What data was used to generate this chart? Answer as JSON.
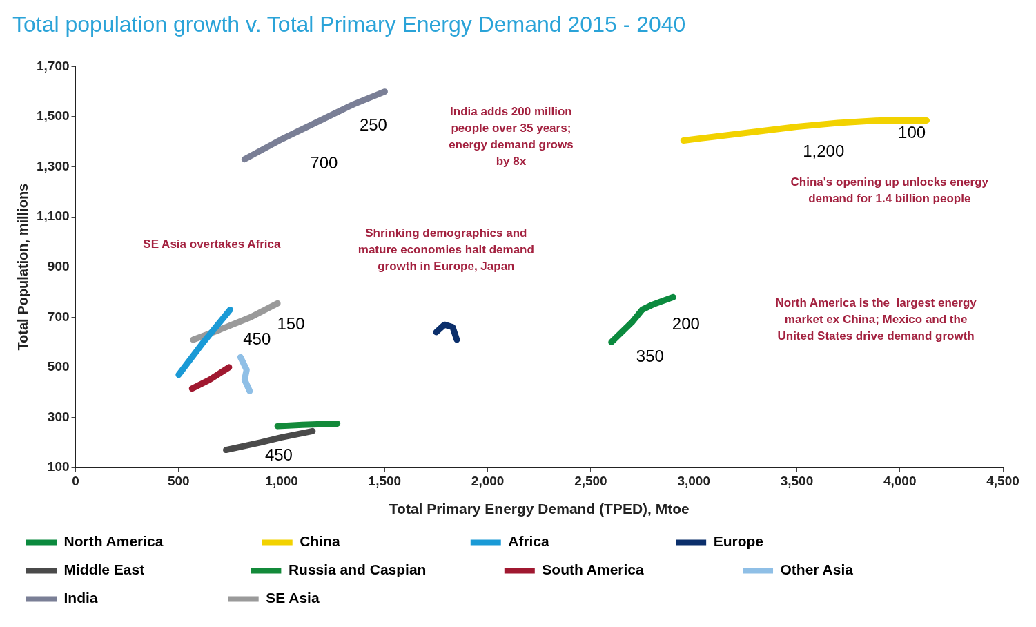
{
  "chart_data": {
    "type": "line",
    "title": "Total population growth v. Total Primary Energy Demand 2015 - 2040",
    "xlabel": "Total Primary Energy Demand (TPED), Mtoe",
    "ylabel": "Total Population, millions",
    "xlim": [
      0,
      4500
    ],
    "xticks": [
      0,
      500,
      {
        "value": 1000,
        "label": "1,000"
      },
      {
        "value": 1500,
        "label": "1,500"
      },
      {
        "value": 2000,
        "label": "2,000"
      },
      {
        "value": 2500,
        "label": "2,500"
      },
      {
        "value": 3000,
        "label": "3,000"
      },
      {
        "value": 3500,
        "label": "3,500"
      },
      {
        "value": 4000,
        "label": "4,000"
      },
      {
        "value": 4500,
        "label": "4,500"
      }
    ],
    "ylim": [
      100,
      1700
    ],
    "yticks": [
      100,
      300,
      500,
      700,
      900,
      {
        "value": 1100,
        "label": "1,100"
      },
      {
        "value": 1300,
        "label": "1,300"
      },
      {
        "value": 1500,
        "label": "1,500"
      },
      {
        "value": 1700,
        "label": "1,700"
      }
    ],
    "grid": false,
    "legend": "bottom",
    "series": [
      {
        "name": "North America",
        "color": "#0b8a3e",
        "x": [
          2600,
          2650,
          2700,
          2750,
          2800,
          2900
        ],
        "values": [
          600,
          640,
          680,
          730,
          750,
          780
        ]
      },
      {
        "name": "China",
        "color": "#f2d200",
        "x": [
          2950,
          3100,
          3300,
          3500,
          3700,
          3900,
          4130
        ],
        "values": [
          1405,
          1420,
          1440,
          1460,
          1475,
          1485,
          1485
        ]
      },
      {
        "name": "Africa",
        "color": "#1a9ad6",
        "x": [
          500,
          620,
          750
        ],
        "values": [
          470,
          600,
          730
        ]
      },
      {
        "name": "Europe",
        "color": "#0b2f6b",
        "x": [
          1750,
          1790,
          1830,
          1850
        ],
        "values": [
          640,
          670,
          660,
          610
        ]
      },
      {
        "name": "Middle East",
        "color": "#4a4a4a",
        "x": [
          730,
          900,
          1000,
          1150
        ],
        "values": [
          170,
          200,
          220,
          245
        ]
      },
      {
        "name": "Russia and Caspian",
        "color": "#138a3a",
        "x": [
          980,
          1100,
          1270
        ],
        "values": [
          265,
          270,
          275
        ]
      },
      {
        "name": "South America",
        "color": "#a01830",
        "x": [
          565,
          650,
          745
        ],
        "values": [
          415,
          450,
          500
        ]
      },
      {
        "name": "Other Asia",
        "color": "#8fbfe6",
        "x": [
          800,
          830,
          820,
          845
        ],
        "values": [
          540,
          490,
          450,
          405
        ]
      },
      {
        "name": "India",
        "color": "#7a7f96",
        "x": [
          820,
          1000,
          1200,
          1350,
          1500
        ],
        "values": [
          1330,
          1410,
          1490,
          1550,
          1600
        ]
      },
      {
        "name": "SE Asia",
        "color": "#9a9a9a",
        "x": [
          570,
          700,
          850,
          980
        ],
        "values": [
          610,
          650,
          700,
          755
        ]
      }
    ],
    "annotations": [
      "India adds 200 million\npeople over 35 years;\nenergy demand grows\nby 8x",
      "China's opening up unlocks energy\ndemand for 1.4 billion people",
      "SE Asia overtakes Africa",
      "Shrinking demographics and\nmature economies halt demand\ngrowth in Europe, Japan",
      "North America is the  largest energy\nmarket ex China; Mexico and the\nUnited States drive demand growth",
      "700",
      "250",
      "1,200",
      "100",
      "450",
      "150",
      "350",
      "200",
      "450"
    ]
  }
}
